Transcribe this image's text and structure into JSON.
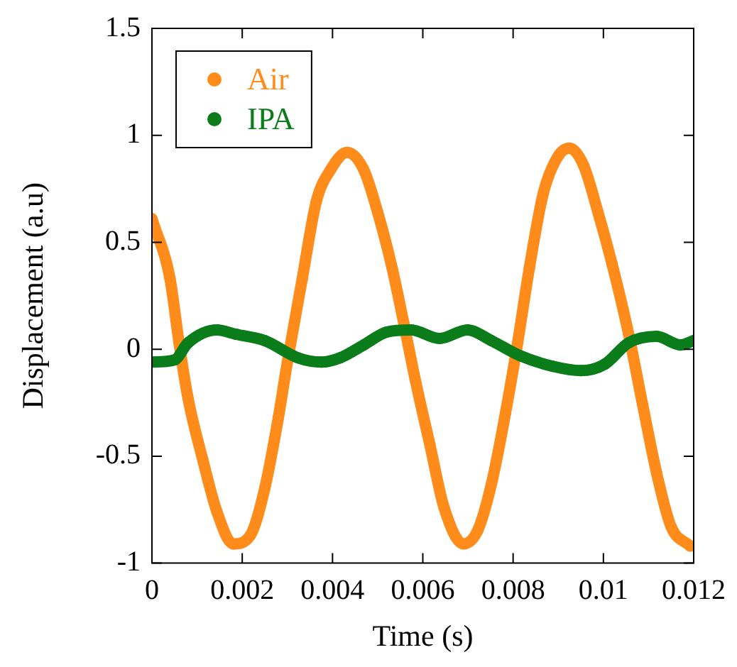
{
  "chart_data": {
    "type": "line",
    "xlabel": "Time (s)",
    "ylabel": "Displacement (a.u)",
    "xlim": [
      0,
      0.012
    ],
    "xticks": [
      0,
      0.002,
      0.004,
      0.006,
      0.008,
      0.01,
      0.012
    ],
    "ylim": [
      -1,
      1.5
    ],
    "yticks": [
      -1,
      -0.5,
      0,
      0.5,
      1,
      1.5
    ],
    "grid": false,
    "legend": "top left",
    "marker": "circle",
    "line_style": "solid",
    "series": [
      {
        "name": "Air",
        "color": "#ff8c1a",
        "x": [
          0,
          0.0004,
          0.0006,
          0.0008,
          0.00113,
          0.00144,
          0.0018,
          0.00218,
          0.0025,
          0.0028,
          0.003,
          0.00333,
          0.00364,
          0.00396,
          0.00432,
          0.00469,
          0.005,
          0.00532,
          0.00558,
          0.00584,
          0.00616,
          0.00647,
          0.0069,
          0.00721,
          0.00752,
          0.00783,
          0.0081,
          0.00836,
          0.00867,
          0.00899,
          0.00925,
          0.00956,
          0.00988,
          0.01019,
          0.01056,
          0.01087,
          0.01118,
          0.0115,
          0.01192
        ],
        "values": [
          0.61,
          0.33,
          0.03,
          -0.23,
          -0.52,
          -0.76,
          -0.91,
          -0.87,
          -0.65,
          -0.32,
          -0.06,
          0.33,
          0.69,
          0.84,
          0.92,
          0.84,
          0.64,
          0.38,
          0.12,
          -0.15,
          -0.45,
          -0.74,
          -0.91,
          -0.85,
          -0.63,
          -0.3,
          0.03,
          0.38,
          0.73,
          0.9,
          0.94,
          0.86,
          0.64,
          0.4,
          0.07,
          -0.26,
          -0.58,
          -0.83,
          -0.92
        ]
      },
      {
        "name": "IPA",
        "color": "#0a7d1a",
        "x": [
          0,
          0.0005,
          0.0008,
          0.00144,
          0.00186,
          0.0025,
          0.00323,
          0.00375,
          0.00417,
          0.00469,
          0.0052,
          0.00574,
          0.00637,
          0.00699,
          0.00752,
          0.00815,
          0.00888,
          0.0095,
          0.01003,
          0.01056,
          0.01118,
          0.0117,
          0.012
        ],
        "values": [
          -0.06,
          -0.05,
          0.03,
          0.09,
          0.07,
          0.04,
          -0.04,
          -0.06,
          -0.04,
          0.02,
          0.08,
          0.09,
          0.05,
          0.09,
          0.04,
          -0.03,
          -0.08,
          -0.1,
          -0.07,
          0.03,
          0.06,
          0.02,
          0.04
        ]
      }
    ]
  }
}
